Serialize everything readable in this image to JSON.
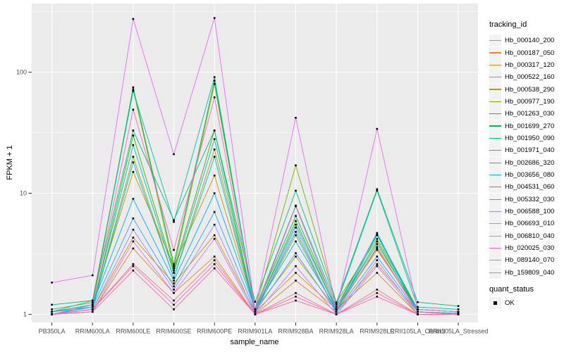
{
  "figure": {
    "background": "#FFFFFF",
    "panel_background": "#EBEBEB",
    "grid_color": "#FFFFFF",
    "tick_color": "#333333",
    "axis_text_color": "#4D4D4D",
    "point_color": "#000000"
  },
  "legend": {
    "tracking_title": "tracking_id",
    "quant_title": "quant_status",
    "quant_ok_label": "OK"
  },
  "chart_data": {
    "type": "line",
    "xlabel": "sample_name",
    "ylabel": "FPKM + 1",
    "y_scale": "log10",
    "y_ticks": [
      1,
      10,
      100
    ],
    "y_tick_labels": [
      "1",
      "10",
      "100"
    ],
    "y_minor_ticks": [
      3.1623,
      31.623,
      316.23
    ],
    "ylim": [
      0.86,
      370
    ],
    "grid": true,
    "legend_position": "right",
    "categories": [
      "PB350LA",
      "RRIM600LA",
      "RRIM600LE",
      "RRIM600SE",
      "RRIM600PE",
      "RRIM901LA",
      "RRIM928BA",
      "RRIM928LA",
      "RRIM928LE",
      "RRII105LA_Control",
      "RRII105LA_Stressed"
    ],
    "series": [
      {
        "name": "Hb_000140_200",
        "color": "#F8766D",
        "values": [
          1.0,
          1.1,
          2.6,
          1.3,
          2.8,
          1.0,
          1.5,
          1.0,
          1.6,
          1.0,
          1.0
        ]
      },
      {
        "name": "Hb_000187_050",
        "color": "#EA8331",
        "values": [
          1.0,
          1.05,
          3.5,
          1.5,
          3.0,
          1.0,
          1.9,
          1.05,
          2.6,
          1.05,
          1.0
        ]
      },
      {
        "name": "Hb_000317_120",
        "color": "#D89000",
        "values": [
          1.0,
          1.1,
          4.3,
          1.8,
          4.5,
          1.05,
          2.2,
          1.1,
          2.2,
          1.0,
          1.0
        ]
      },
      {
        "name": "Hb_000522_160",
        "color": "#C09B00",
        "values": [
          1.0,
          1.2,
          15.0,
          2.5,
          14.0,
          1.1,
          3.0,
          1.1,
          3.4,
          1.1,
          1.05
        ]
      },
      {
        "name": "Hb_000538_290",
        "color": "#A3A500",
        "values": [
          1.0,
          1.1,
          20.0,
          2.0,
          23.0,
          1.05,
          4.5,
          1.05,
          3.6,
          1.05,
          1.0
        ]
      },
      {
        "name": "Hb_000977_190",
        "color": "#7CAE00",
        "values": [
          1.05,
          1.3,
          72.0,
          2.4,
          80.0,
          1.1,
          17.0,
          1.25,
          4.2,
          1.1,
          1.05
        ]
      },
      {
        "name": "Hb_001263_030",
        "color": "#39B600",
        "values": [
          1.0,
          1.15,
          30.0,
          2.3,
          33.0,
          1.05,
          5.9,
          1.1,
          4.0,
          1.05,
          1.0
        ]
      },
      {
        "name": "Hb_001699_270",
        "color": "#00BB4E",
        "values": [
          1.05,
          1.2,
          75.0,
          2.6,
          85.0,
          1.1,
          6.5,
          1.15,
          4.6,
          1.1,
          1.05
        ]
      },
      {
        "name": "Hb_001950_090",
        "color": "#00BF7D",
        "values": [
          1.2,
          1.3,
          33.0,
          6.0,
          33.0,
          1.27,
          10.5,
          1.25,
          10.8,
          1.26,
          1.17
        ]
      },
      {
        "name": "Hb_001971_040",
        "color": "#00C1A3",
        "values": [
          1.1,
          1.25,
          70.0,
          5.8,
          91.0,
          1.1,
          7.9,
          1.2,
          10.5,
          1.15,
          1.1
        ]
      },
      {
        "name": "Hb_002686_320",
        "color": "#00BFC4",
        "values": [
          1.05,
          1.15,
          25.0,
          2.2,
          28.0,
          1.05,
          5.5,
          1.1,
          4.7,
          1.05,
          1.02
        ]
      },
      {
        "name": "Hb_003656_080",
        "color": "#00BAE0",
        "values": [
          1.0,
          1.1,
          18.0,
          2.0,
          20.0,
          1.05,
          4.8,
          1.05,
          4.5,
          1.05,
          1.0
        ]
      },
      {
        "name": "Hb_004531_060",
        "color": "#00B0F6",
        "values": [
          1.05,
          1.2,
          9.0,
          1.9,
          10.0,
          1.1,
          4.0,
          1.1,
          3.8,
          1.1,
          1.05
        ]
      },
      {
        "name": "Hb_005332_030",
        "color": "#35A2FF",
        "values": [
          1.0,
          1.15,
          6.2,
          1.7,
          7.0,
          1.05,
          3.2,
          1.05,
          3.0,
          1.05,
          1.0
        ]
      },
      {
        "name": "Hb_006588_100",
        "color": "#9590FF",
        "values": [
          1.0,
          1.1,
          5.0,
          1.6,
          5.5,
          1.0,
          5.2,
          1.0,
          2.8,
          1.0,
          1.0
        ]
      },
      {
        "name": "Hb_006693_010",
        "color": "#C77CFF",
        "values": [
          1.0,
          1.05,
          4.0,
          1.5,
          4.2,
          1.0,
          2.5,
          1.0,
          2.5,
          1.0,
          1.0
        ]
      },
      {
        "name": "Hb_006810_040",
        "color": "#E76BF3",
        "values": [
          1.83,
          2.1,
          275.0,
          21.0,
          280.0,
          1.1,
          42.0,
          1.1,
          34.0,
          1.1,
          1.05
        ]
      },
      {
        "name": "Hb_020025_030",
        "color": "#FA62DB",
        "values": [
          1.0,
          1.1,
          2.5,
          1.2,
          2.6,
          1.0,
          1.4,
          1.0,
          1.5,
          1.0,
          1.0
        ]
      },
      {
        "name": "Hb_089140_070",
        "color": "#FF62BC",
        "values": [
          1.0,
          1.2,
          49.0,
          3.4,
          62.0,
          1.05,
          7.8,
          1.1,
          3.5,
          1.05,
          1.0
        ]
      },
      {
        "name": "Hb_159809_040",
        "color": "#FF6A98",
        "values": [
          1.0,
          1.05,
          2.3,
          1.1,
          2.4,
          1.0,
          1.3,
          1.0,
          1.4,
          1.0,
          1.0
        ]
      }
    ]
  }
}
